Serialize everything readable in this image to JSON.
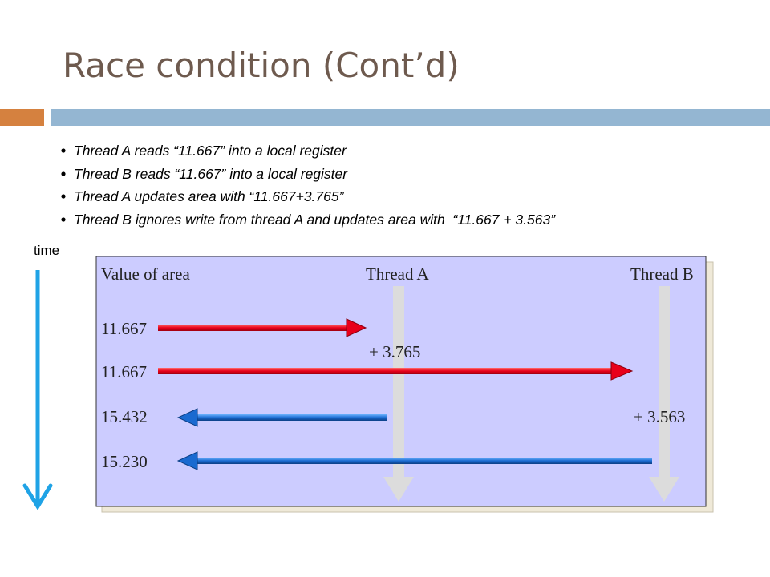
{
  "title": "Race condition (Cont’d)",
  "bullets": [
    "Thread A reads “11.667” into a local register",
    "Thread B reads “11.667” into a local register",
    "Thread A updates area with “11.667+3.765”",
    "Thread B ignores write from thread A and updates area with  “11.667 + 3.563”"
  ],
  "time_label": "time",
  "diagram": {
    "headers": [
      "Value of area",
      "Thread A",
      "Thread B"
    ],
    "values": [
      "11.667",
      "11.667",
      "15.432",
      "15.230"
    ],
    "annotations": [
      "+ 3.765",
      "+ 3.563"
    ]
  }
}
